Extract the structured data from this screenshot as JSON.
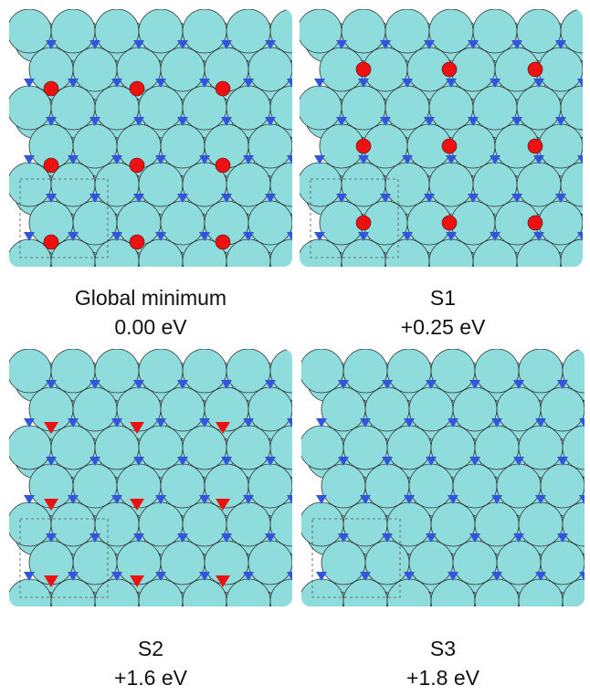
{
  "panels": [
    {
      "name": "Global minimum",
      "energy": "0.00 eV"
    },
    {
      "name": "S1",
      "energy": "+0.25 eV"
    },
    {
      "name": "S2",
      "energy": "+1.6 eV"
    },
    {
      "name": "S3",
      "energy": "+1.8 eV"
    }
  ]
}
